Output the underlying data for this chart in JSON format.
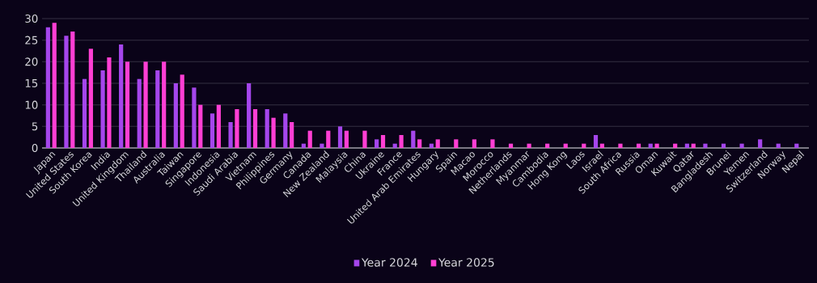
{
  "chart_data": {
    "type": "bar",
    "categories": [
      "Japan",
      "United States",
      "South Korea",
      "India",
      "United Kingdom",
      "Thailand",
      "Australia",
      "Taiwan",
      "Singapore",
      "Indonesia",
      "Saudi Arabia",
      "Vietnam",
      "Philippines",
      "Germany",
      "Canada",
      "New Zealand",
      "Malaysia",
      "China",
      "Ukraine",
      "France",
      "United Arab Emirates",
      "Hungary",
      "Spain",
      "Macao",
      "Morocco",
      "Netherlands",
      "Myanmar",
      "Cambodia",
      "Hong Kong",
      "Laos",
      "Israel",
      "South Africa",
      "Russia",
      "Oman",
      "Kuwait",
      "Qatar",
      "Bangladesh",
      "Brunei",
      "Yemen",
      "Switzerland",
      "Norway",
      "Nepal"
    ],
    "series": [
      {
        "name": "Year 2024",
        "color": "#a546ec",
        "values": [
          28,
          26,
          16,
          18,
          24,
          16,
          18,
          15,
          14,
          8,
          6,
          15,
          9,
          8,
          1,
          1,
          5,
          0,
          2,
          1,
          4,
          1,
          0,
          0,
          0,
          0,
          0,
          0,
          0,
          0,
          3,
          0,
          0,
          1,
          0,
          1,
          1,
          1,
          1,
          2,
          1,
          1
        ]
      },
      {
        "name": "Year 2025",
        "color": "#ff3fd4",
        "values": [
          29,
          27,
          23,
          21,
          20,
          20,
          20,
          17,
          10,
          10,
          9,
          9,
          7,
          6,
          4,
          4,
          4,
          4,
          3,
          3,
          2,
          2,
          2,
          2,
          2,
          1,
          1,
          1,
          1,
          1,
          1,
          1,
          1,
          1,
          1,
          1,
          0,
          0,
          0,
          0,
          0,
          0
        ]
      }
    ],
    "ylim": [
      0,
      30
    ],
    "yticks": [
      0,
      5,
      10,
      15,
      20,
      25,
      30
    ],
    "grid": "y",
    "legend": "bottom"
  }
}
